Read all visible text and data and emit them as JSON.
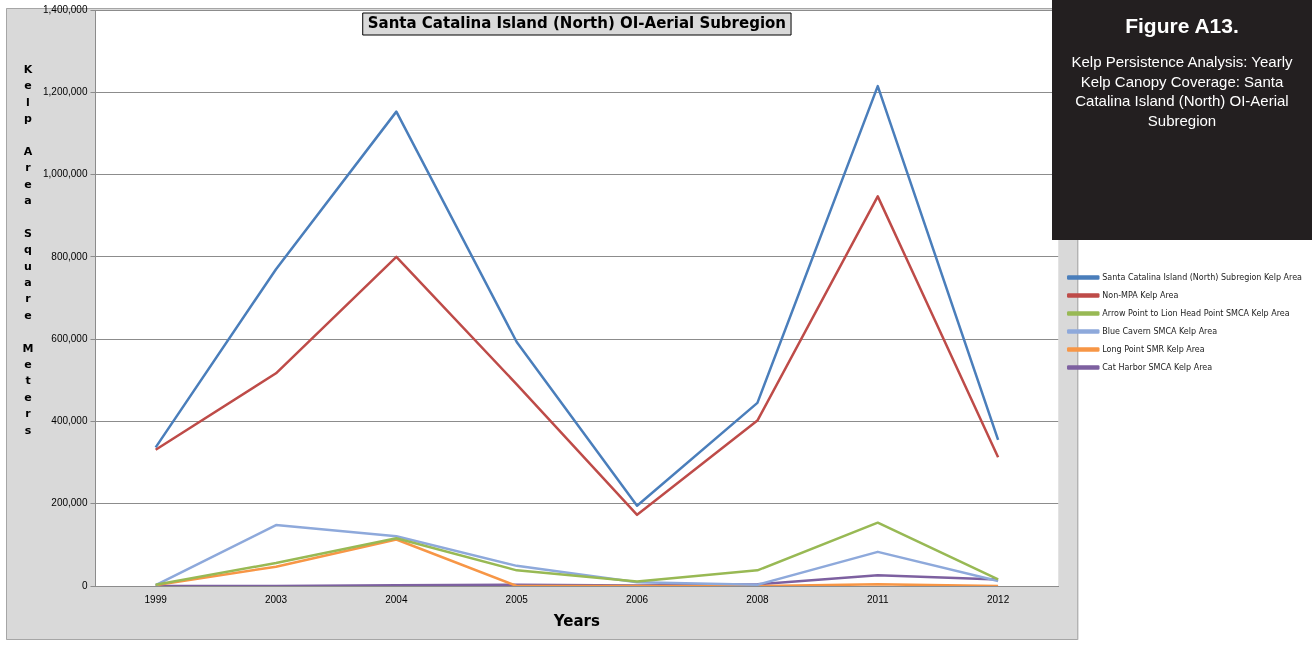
{
  "chart_data": {
    "type": "line",
    "title": "Santa Catalina Island (North) OI-Aerial Subregion",
    "xlabel": "Years",
    "ylabel": "Kelp Area Square Meters",
    "categories": [
      "1999",
      "2003",
      "2004",
      "2005",
      "2006",
      "2008",
      "2011",
      "2012"
    ],
    "series": [
      {
        "name": "Santa Catalina Island (North) Subregion Kelp Area",
        "color": "#4a7ebb",
        "values": [
          337000,
          770000,
          1153000,
          593000,
          195000,
          445000,
          1215000,
          355000
        ]
      },
      {
        "name": "Non-MPA Kelp Area",
        "color": "#be4b48",
        "values": [
          331000,
          517000,
          800000,
          490000,
          173000,
          402000,
          947000,
          313000
        ]
      },
      {
        "name": "Arrow Point to Lion Head Point SMCA Kelp Area",
        "color": "#98b954",
        "values": [
          3000,
          56000,
          116000,
          38000,
          11000,
          38000,
          154000,
          16000
        ]
      },
      {
        "name": "Blue Cavern SMCA Kelp Area",
        "color": "#8ea9db",
        "values": [
          2000,
          148000,
          121000,
          49000,
          9000,
          3000,
          83000,
          12000
        ]
      },
      {
        "name": "Long Point SMR Kelp Area",
        "color": "#f79646",
        "values": [
          2000,
          47000,
          113000,
          0,
          0,
          0,
          4000,
          0
        ]
      },
      {
        "name": "Cat Harbor SMCA Kelp Area",
        "color": "#7d60a0",
        "values": [
          0,
          0,
          2000,
          3000,
          1000,
          4000,
          26000,
          16000
        ]
      }
    ],
    "ylim": [
      0,
      1400000
    ],
    "yticks": [
      0,
      {
        "value": 200000,
        "label": "200,000"
      },
      {
        "value": 400000,
        "label": "400,000"
      },
      {
        "value": 600000,
        "label": "600,000"
      },
      {
        "value": 800000,
        "label": "800,000"
      },
      {
        "value": 1000000,
        "label": "1,000,000"
      },
      {
        "value": 1200000,
        "label": "1,200,000"
      },
      {
        "value": 1400000,
        "label": "1,400,000"
      }
    ],
    "grid": "y",
    "legend": "right",
    "marker": "none",
    "line_style": "solid",
    "annotations": [
      "Figure A13.",
      "Kelp Persistence Analysis: Yearly Kelp Canopy Coverage: Santa Catalina Island (North) OI-Aerial Subregion"
    ]
  }
}
